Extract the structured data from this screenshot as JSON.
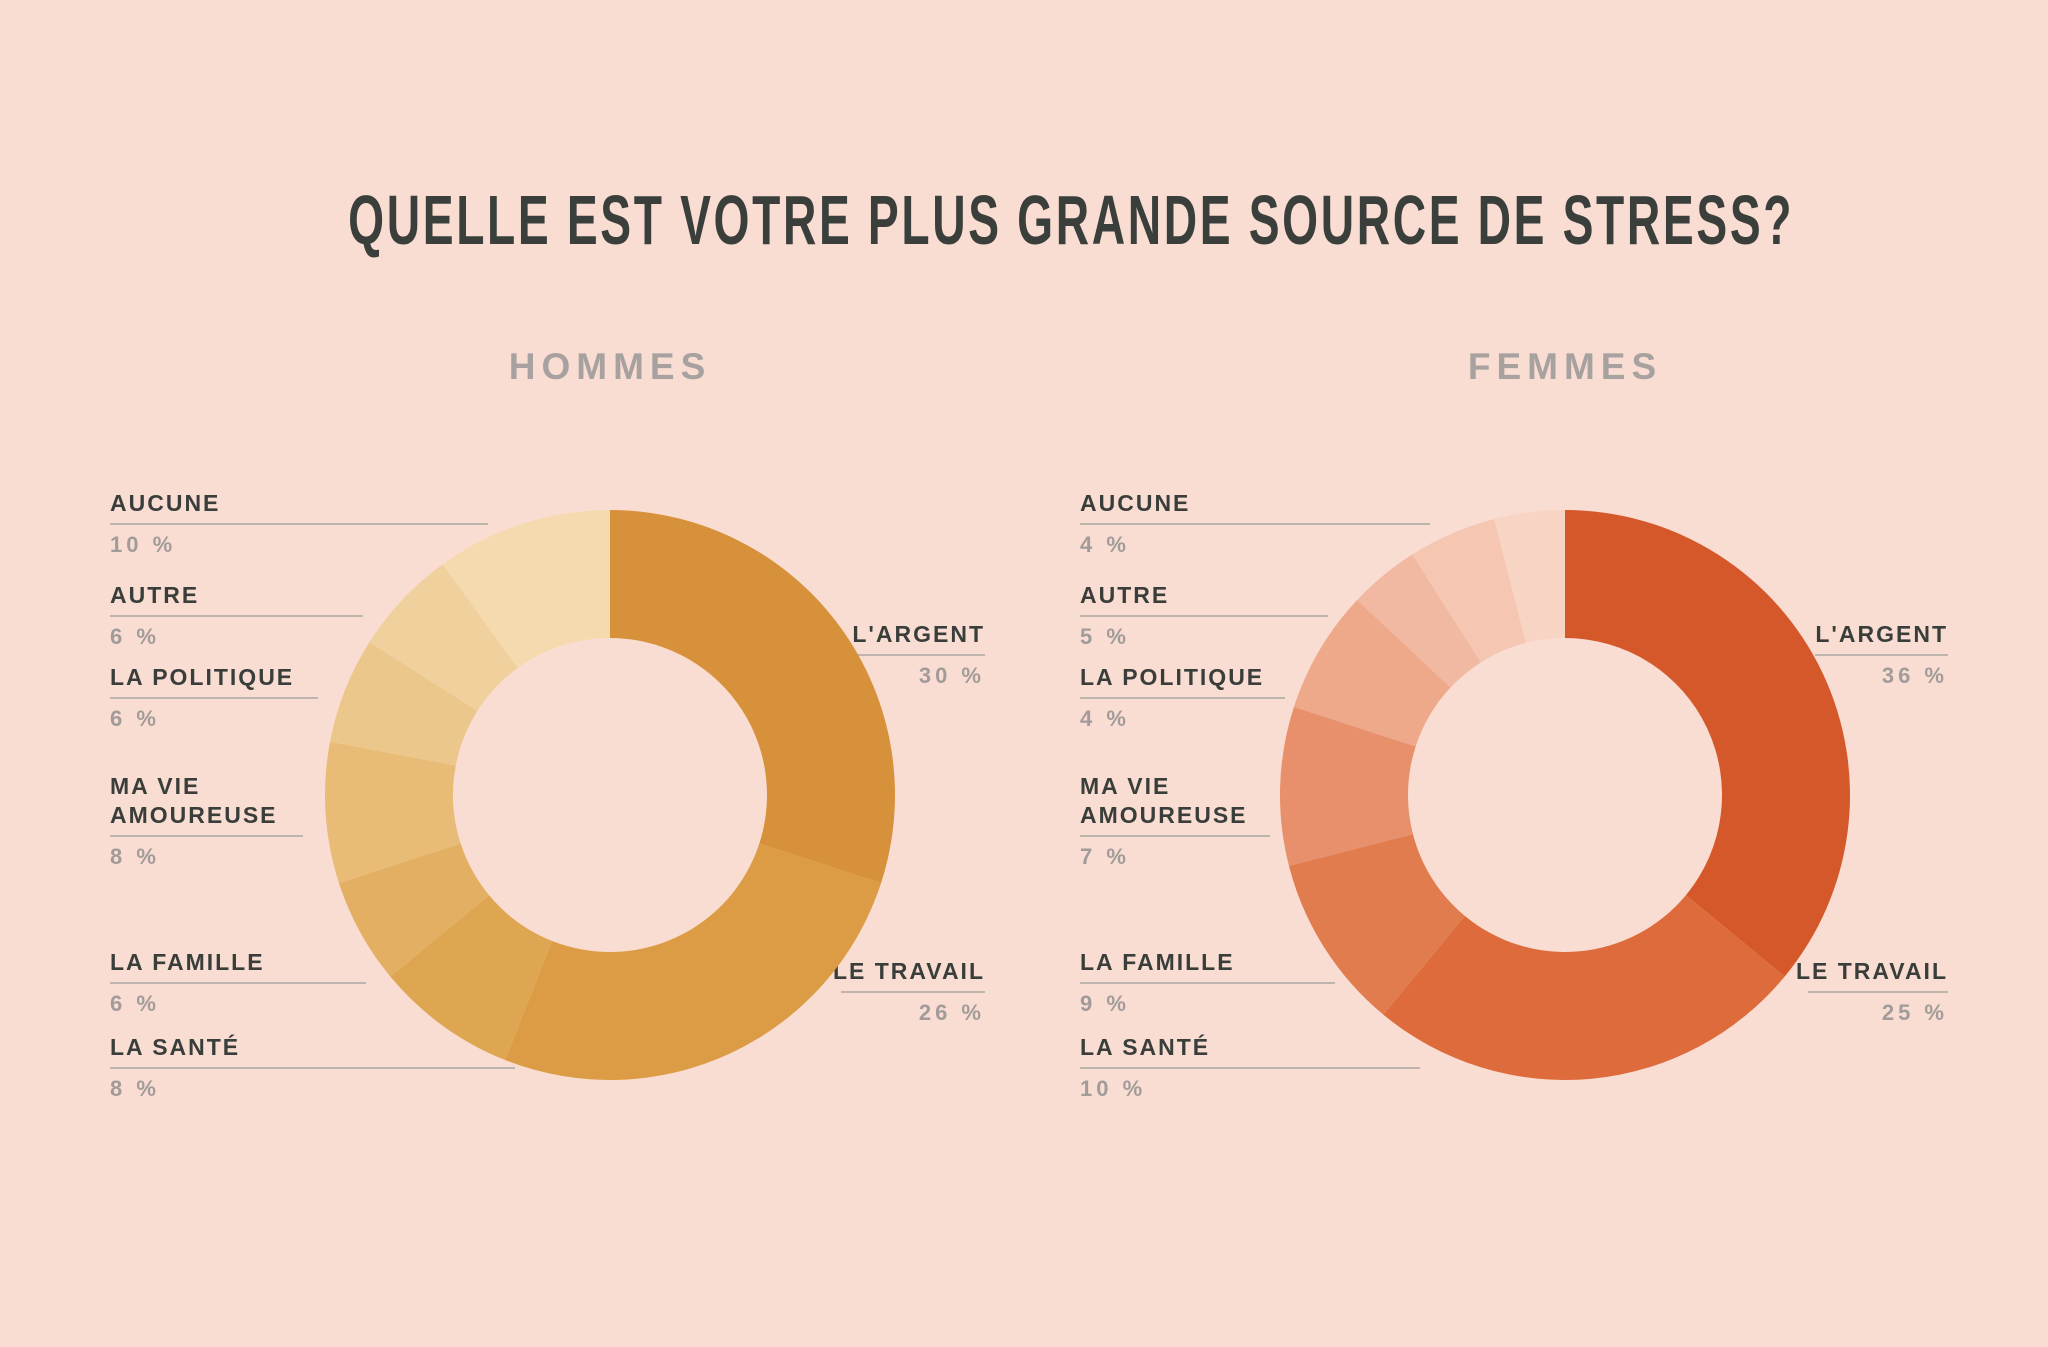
{
  "page": {
    "background": "#FADDD2",
    "title": "QUELLE EST VOTRE PLUS GRANDE SOURCE DE STRESS?",
    "title_color": "#3B3F3C",
    "subtitle_color": "#A7A19F",
    "label_color": "#3A3E3B",
    "percent_color": "#A19B99",
    "leader_line_color": "#BFB5AF"
  },
  "chart_data": {
    "type": "pie",
    "subtype": "donut",
    "title": "QUELLE EST VOTRE PLUS GRANDE SOURCE DE STRESS?",
    "unit": "%",
    "start_angle": "top",
    "direction": "clockwise",
    "legend_position": "labels-around-donut",
    "categories": [
      "L'ARGENT",
      "LE TRAVAIL",
      "LA SANTÉ",
      "LA FAMILLE",
      "MA VIE AMOUREUSE",
      "LA POLITIQUE",
      "AUTRE",
      "AUCUNE"
    ],
    "series": [
      {
        "name": "HOMMES",
        "values": [
          30,
          26,
          8,
          6,
          8,
          6,
          6,
          10
        ],
        "colors": [
          "#D8913B",
          "#DB9C45",
          "#DFA652",
          "#E3AF63",
          "#E8BB77",
          "#ECC78B",
          "#F0D09C",
          "#F4DAAE"
        ]
      },
      {
        "name": "FEMMES",
        "values": [
          36,
          25,
          10,
          9,
          7,
          4,
          5,
          4
        ],
        "colors": [
          "#D5582B",
          "#DD6B3B",
          "#E17C4F",
          "#E8906C",
          "#EEA88A",
          "#F2B9A2",
          "#F5C7B2",
          "#F8D4C4"
        ]
      }
    ]
  },
  "labels": {
    "hommes": {
      "left": [
        {
          "name": "AUCUNE",
          "value": "10 %"
        },
        {
          "name": "AUTRE",
          "value": "6 %"
        },
        {
          "name": "LA POLITIQUE",
          "value": "6 %"
        },
        {
          "name": "MA VIE AMOUREUSE",
          "value": "8 %"
        },
        {
          "name": "LA FAMILLE",
          "value": "6 %"
        },
        {
          "name": "LA SANTÉ",
          "value": "8 %"
        }
      ],
      "right": [
        {
          "name": "L'ARGENT",
          "value": "30 %"
        },
        {
          "name": "LE TRAVAIL",
          "value": "26 %"
        }
      ]
    },
    "femmes": {
      "left": [
        {
          "name": "AUCUNE",
          "value": "4 %"
        },
        {
          "name": "AUTRE",
          "value": "5 %"
        },
        {
          "name": "LA POLITIQUE",
          "value": "4 %"
        },
        {
          "name": "MA VIE AMOUREUSE",
          "value": "7 %"
        },
        {
          "name": "LA FAMILLE",
          "value": "9 %"
        },
        {
          "name": "LA SANTÉ",
          "value": "10 %"
        }
      ],
      "right": [
        {
          "name": "L'ARGENT",
          "value": "36 %"
        },
        {
          "name": "LE TRAVAIL",
          "value": "25 %"
        }
      ]
    }
  }
}
